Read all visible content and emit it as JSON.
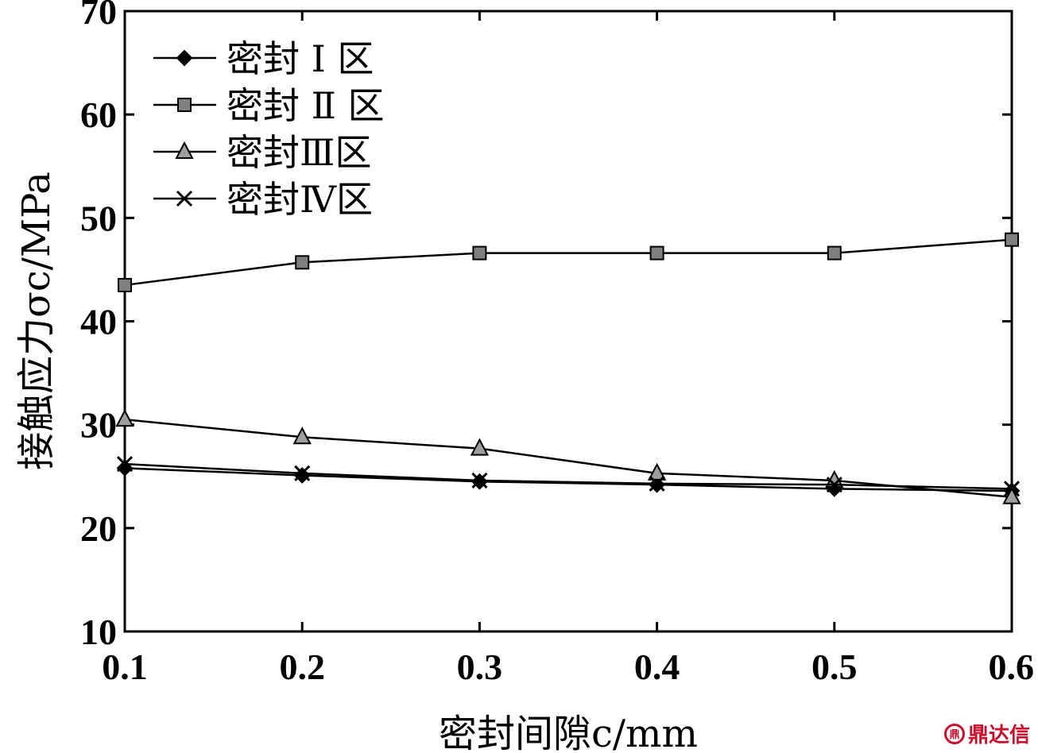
{
  "chart_data": {
    "type": "line",
    "xlabel": "密封间隙c/mm",
    "ylabel": "接触应力σc/MPa",
    "xlim": [
      0.1,
      0.6
    ],
    "ylim": [
      10,
      70
    ],
    "xticks": [
      "0.1",
      "0.2",
      "0.3",
      "0.4",
      "0.5",
      "0.6"
    ],
    "yticks": [
      "10",
      "20",
      "30",
      "40",
      "50",
      "60",
      "70"
    ],
    "x": [
      0.1,
      0.2,
      0.3,
      0.4,
      0.5,
      0.6
    ],
    "legend_position": "top-left",
    "grid": false,
    "series": [
      {
        "name": "密封 Ⅰ 区",
        "marker": "diamond",
        "fill": "#000000",
        "values": [
          25.8,
          25.1,
          24.5,
          24.2,
          23.8,
          23.6
        ]
      },
      {
        "name": "密封 Ⅱ 区",
        "marker": "square",
        "fill": "#7f7f7f",
        "values": [
          43.5,
          45.7,
          46.6,
          46.6,
          46.6,
          47.9
        ]
      },
      {
        "name": "密封Ⅲ区",
        "marker": "triangle",
        "fill": "#9e9e9e",
        "values": [
          30.5,
          28.8,
          27.7,
          25.3,
          24.6,
          23.0
        ]
      },
      {
        "name": "密封Ⅳ区",
        "marker": "x",
        "fill": "#000000",
        "values": [
          26.2,
          25.3,
          24.6,
          24.3,
          24.2,
          23.8
        ]
      }
    ]
  },
  "watermark": {
    "logo": "鼎",
    "text": "鼎达信"
  }
}
